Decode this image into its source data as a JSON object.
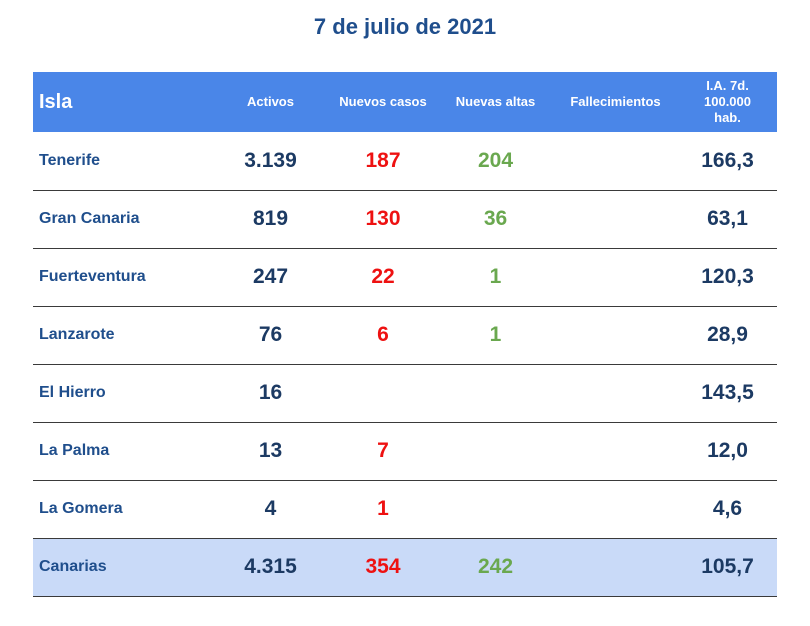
{
  "title": "7 de julio de 2021",
  "headers": {
    "isla": "Isla",
    "activos": "Activos",
    "nuevos": "Nuevos casos",
    "altas": "Nuevas altas",
    "fallecimientos": "Fallecimientos",
    "ia_line1": "I.A. 7d.",
    "ia_line2": "100.000",
    "ia_line3": "hab."
  },
  "rows": [
    {
      "isla": "Tenerife",
      "activos": "3.139",
      "nuevos": "187",
      "altas": "204",
      "fallecimientos": "",
      "ia": "166,3"
    },
    {
      "isla": "Gran Canaria",
      "activos": "819",
      "nuevos": "130",
      "altas": "36",
      "fallecimientos": "",
      "ia": "63,1"
    },
    {
      "isla": "Fuerteventura",
      "activos": "247",
      "nuevos": "22",
      "altas": "1",
      "fallecimientos": "",
      "ia": "120,3"
    },
    {
      "isla": "Lanzarote",
      "activos": "76",
      "nuevos": "6",
      "altas": "1",
      "fallecimientos": "",
      "ia": "28,9"
    },
    {
      "isla": "El Hierro",
      "activos": "16",
      "nuevos": "",
      "altas": "",
      "fallecimientos": "",
      "ia": "143,5"
    },
    {
      "isla": "La Palma",
      "activos": "13",
      "nuevos": "7",
      "altas": "",
      "fallecimientos": "",
      "ia": "12,0"
    },
    {
      "isla": "La Gomera",
      "activos": "4",
      "nuevos": "1",
      "altas": "",
      "fallecimientos": "",
      "ia": "4,6"
    }
  ],
  "total": {
    "isla": "Canarias",
    "activos": "4.315",
    "nuevos": "354",
    "altas": "242",
    "fallecimientos": "",
    "ia": "105,7"
  },
  "colors": {
    "header_bg": "#4a86e8",
    "total_bg": "#c9daf8",
    "title": "#1f4e8c",
    "nuevos": "#ee1111",
    "altas": "#6aa84f",
    "values": "#1c3a63"
  }
}
